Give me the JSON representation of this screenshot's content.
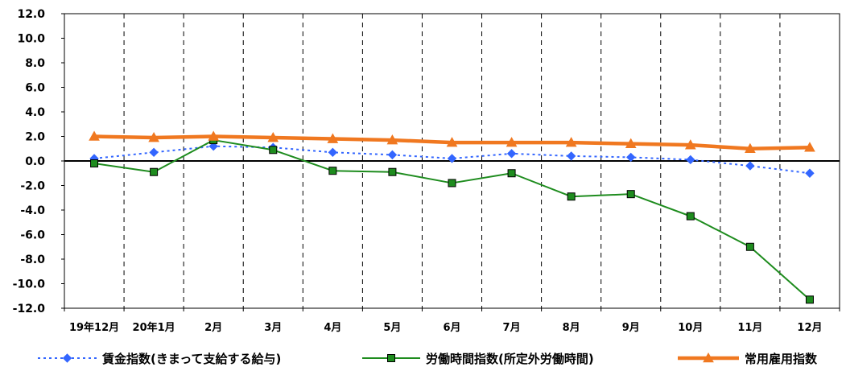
{
  "chart_data": {
    "type": "line",
    "categories": [
      "19年12月",
      "20年1月",
      "2月",
      "3月",
      "4月",
      "5月",
      "6月",
      "7月",
      "8月",
      "9月",
      "10月",
      "11月",
      "12月"
    ],
    "ylim": [
      -12.0,
      12.0
    ],
    "yticks": [
      "12.0",
      "10.0",
      "8.0",
      "6.0",
      "4.0",
      "2.0",
      "0.0",
      "-2.0",
      "-4.0",
      "-6.0",
      "-8.0",
      "-10.0",
      "-12.0"
    ],
    "grid": "vertical dashed",
    "legend_position": "bottom",
    "series": [
      {
        "name": "賃金指数(きまって支給する給与)",
        "color": "#3366FF",
        "marker": "diamond",
        "line_style": "dotted",
        "values": [
          0.2,
          0.7,
          1.2,
          1.1,
          0.7,
          0.5,
          0.2,
          0.6,
          0.4,
          0.3,
          0.1,
          -0.4,
          -1.0
        ]
      },
      {
        "name": "労働時間指数(所定外労働時間)",
        "color": "#1E8C1E",
        "marker": "square",
        "line_style": "solid",
        "values": [
          -0.2,
          -0.9,
          1.7,
          0.9,
          -0.8,
          -0.9,
          -1.8,
          -1.0,
          -2.9,
          -2.7,
          -4.5,
          -7.0,
          -11.3
        ]
      },
      {
        "name": "常用雇用指数",
        "color": "#F07820",
        "marker": "triangle",
        "line_style": "thick",
        "values": [
          2.0,
          1.9,
          2.0,
          1.9,
          1.8,
          1.7,
          1.5,
          1.5,
          1.5,
          1.4,
          1.3,
          1.0,
          1.1
        ]
      }
    ]
  }
}
